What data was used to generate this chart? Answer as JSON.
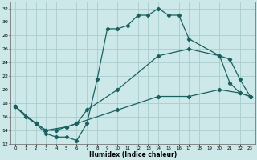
{
  "xlabel": "Humidex (Indice chaleur)",
  "ylabel": "",
  "bg_color": "#cce8e8",
  "grid_color": "#aacccc",
  "line_color": "#1a6060",
  "xlim": [
    -0.5,
    23.5
  ],
  "ylim": [
    12,
    33
  ],
  "xticks": [
    0,
    1,
    2,
    3,
    4,
    5,
    6,
    7,
    8,
    9,
    10,
    11,
    12,
    13,
    14,
    15,
    16,
    17,
    18,
    19,
    20,
    21,
    22,
    23
  ],
  "yticks": [
    12,
    14,
    16,
    18,
    20,
    22,
    24,
    26,
    28,
    30,
    32
  ],
  "curve1_x": [
    0,
    1,
    2,
    3,
    4,
    5,
    6,
    7,
    8,
    9,
    10,
    11,
    12,
    13,
    14,
    15,
    16,
    17,
    20,
    21,
    22,
    23
  ],
  "curve1_y": [
    17.5,
    16,
    15,
    13.5,
    13,
    13,
    12.5,
    15,
    21.5,
    29,
    29,
    29.5,
    31,
    31,
    32,
    31,
    31,
    27.5,
    25,
    21,
    19.5,
    19
  ],
  "curve2_x": [
    0,
    2,
    3,
    4,
    5,
    6,
    7,
    10,
    14,
    17,
    20,
    21,
    22,
    23
  ],
  "curve2_y": [
    17.5,
    15,
    14,
    14,
    14.5,
    15,
    17,
    20,
    25,
    26,
    25,
    24.5,
    21.5,
    19
  ],
  "curve3_x": [
    0,
    2,
    3,
    5,
    6,
    10,
    14,
    17,
    20,
    22,
    23
  ],
  "curve3_y": [
    17.5,
    15,
    14,
    14.5,
    15,
    17,
    19,
    19,
    20,
    19.5,
    19
  ]
}
